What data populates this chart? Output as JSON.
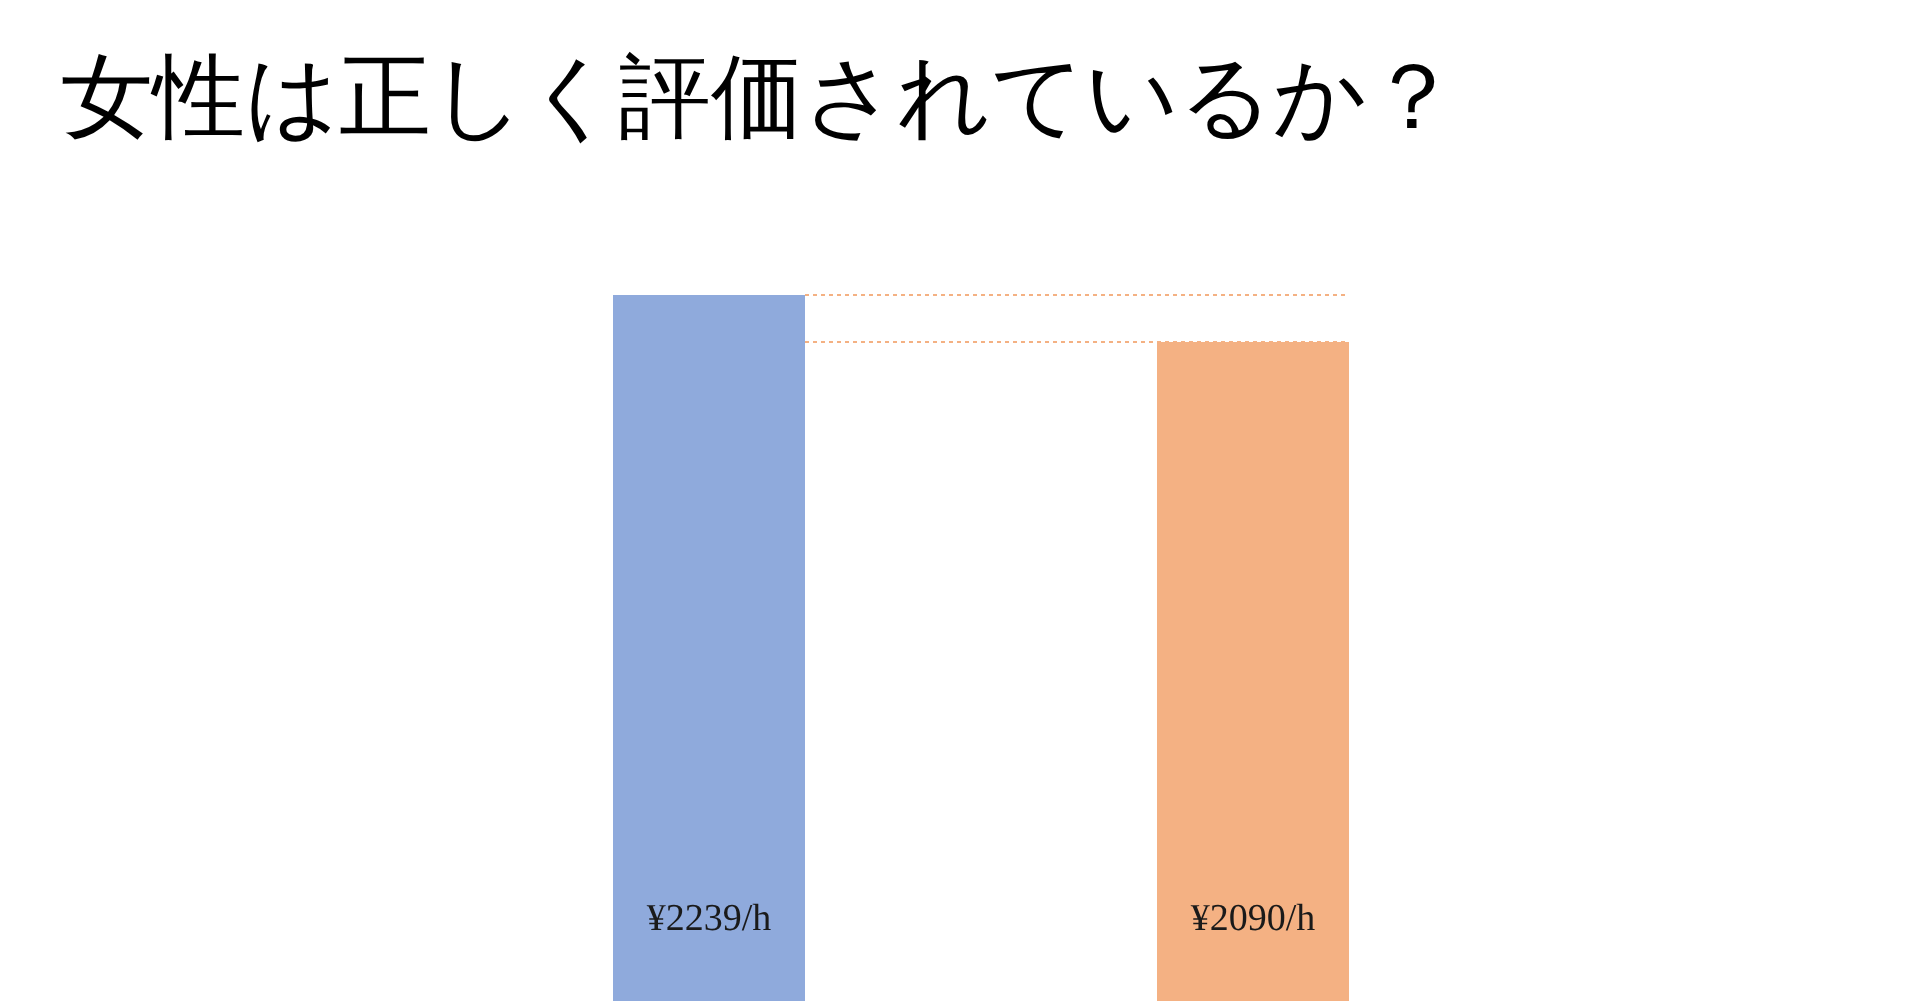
{
  "chart_data": {
    "type": "bar",
    "title": "女性は正しく評価されているか？",
    "categories": [
      null,
      null
    ],
    "values": [
      2239,
      2090
    ],
    "colors": [
      "#8faadc",
      "#f4b183"
    ],
    "value_labels": [
      "¥2239/h",
      "¥2090/h"
    ],
    "ref_lines": [
      {
        "axis": "y",
        "value": 2239,
        "color": "#f4b183",
        "line_style": "dotted"
      },
      {
        "axis": "y",
        "value": 2090,
        "color": "#f4b183",
        "line_style": "dotted"
      }
    ]
  }
}
